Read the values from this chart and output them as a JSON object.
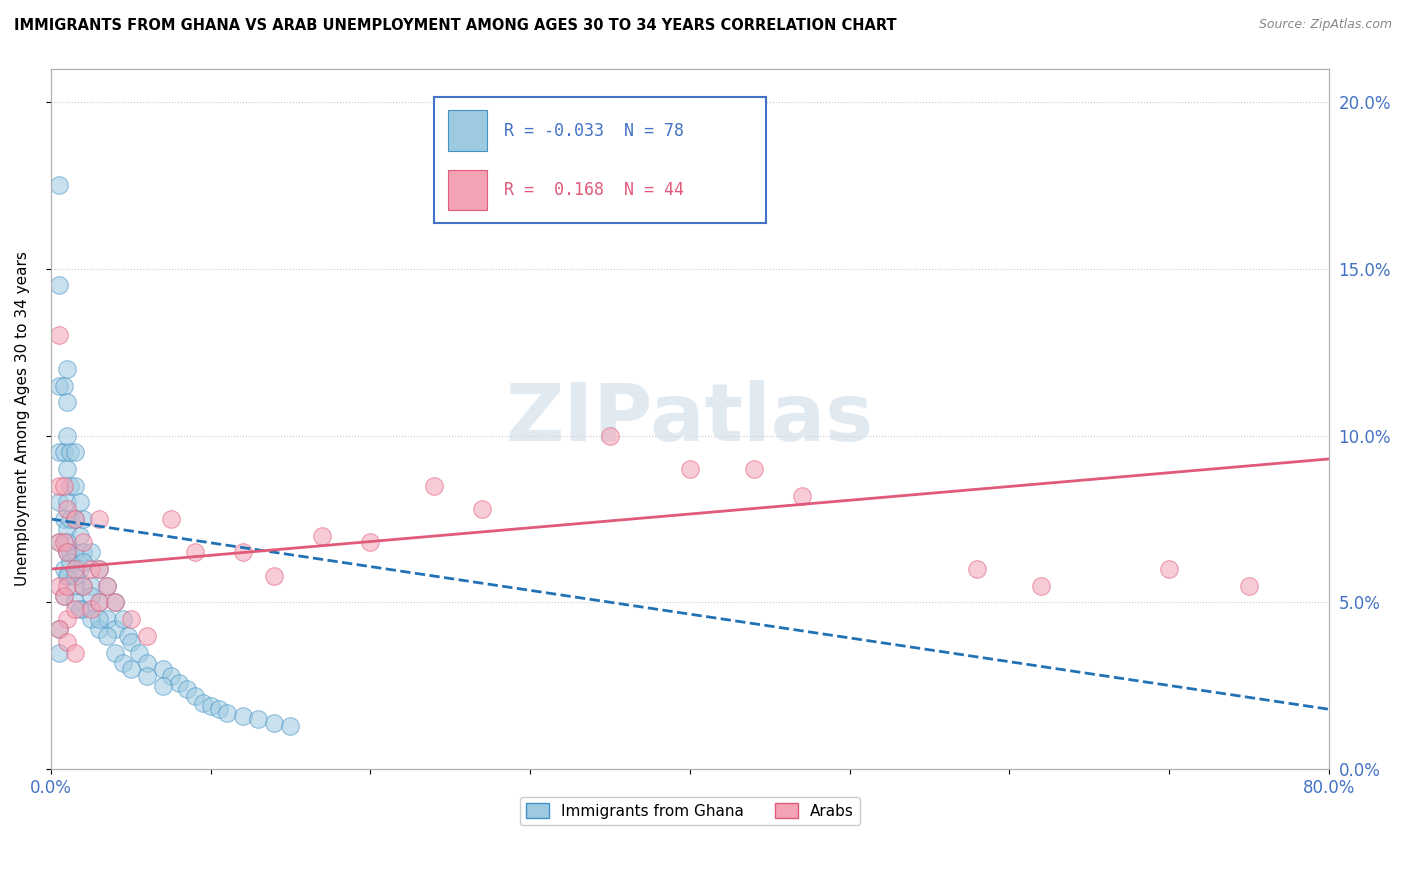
{
  "title": "IMMIGRANTS FROM GHANA VS ARAB UNEMPLOYMENT AMONG AGES 30 TO 34 YEARS CORRELATION CHART",
  "source": "Source: ZipAtlas.com",
  "ylabel": "Unemployment Among Ages 30 to 34 years",
  "xlim": [
    0.0,
    0.8
  ],
  "ylim": [
    0.0,
    0.21
  ],
  "xticks": [
    0.0,
    0.1,
    0.2,
    0.3,
    0.4,
    0.5,
    0.6,
    0.7,
    0.8
  ],
  "xticklabels": [
    "0.0%",
    "",
    "",
    "",
    "",
    "",
    "",
    "",
    "80.0%"
  ],
  "yticks": [
    0.0,
    0.05,
    0.1,
    0.15,
    0.2
  ],
  "yticklabels_right": [
    "0.0%",
    "5.0%",
    "10.0%",
    "15.0%",
    "20.0%"
  ],
  "R_ghana": -0.033,
  "N_ghana": 78,
  "R_arab": 0.168,
  "N_arab": 44,
  "ghana_color": "#9ecae1",
  "arab_color": "#f4a3b5",
  "ghana_edge_color": "#4292c6",
  "arab_edge_color": "#e05a7a",
  "ghana_line_color": "#2171b5",
  "arab_line_color": "#e05a7a",
  "watermark": "ZIPatlas",
  "watermark_color": "#d0dce8",
  "ghana_trend_x0": 0.0,
  "ghana_trend_y0": 0.075,
  "ghana_trend_x1": 0.8,
  "ghana_trend_y1": 0.018,
  "arab_trend_x0": 0.0,
  "arab_trend_y0": 0.06,
  "arab_trend_x1": 0.8,
  "arab_trend_y1": 0.093,
  "ghana_x": [
    0.005,
    0.005,
    0.005,
    0.005,
    0.005,
    0.005,
    0.008,
    0.008,
    0.008,
    0.008,
    0.01,
    0.01,
    0.01,
    0.01,
    0.01,
    0.01,
    0.01,
    0.01,
    0.012,
    0.012,
    0.012,
    0.012,
    0.015,
    0.015,
    0.015,
    0.015,
    0.015,
    0.018,
    0.018,
    0.018,
    0.02,
    0.02,
    0.02,
    0.02,
    0.025,
    0.025,
    0.025,
    0.03,
    0.03,
    0.03,
    0.035,
    0.035,
    0.04,
    0.04,
    0.045,
    0.048,
    0.05,
    0.055,
    0.06,
    0.07,
    0.075,
    0.08,
    0.085,
    0.09,
    0.095,
    0.1,
    0.105,
    0.11,
    0.12,
    0.13,
    0.14,
    0.15,
    0.005,
    0.005,
    0.008,
    0.01,
    0.01,
    0.012,
    0.015,
    0.015,
    0.018,
    0.02,
    0.025,
    0.03,
    0.035,
    0.04,
    0.045,
    0.05,
    0.06,
    0.07
  ],
  "ghana_y": [
    0.175,
    0.145,
    0.115,
    0.095,
    0.08,
    0.068,
    0.115,
    0.095,
    0.075,
    0.06,
    0.12,
    0.11,
    0.1,
    0.09,
    0.08,
    0.072,
    0.065,
    0.058,
    0.095,
    0.085,
    0.075,
    0.065,
    0.095,
    0.085,
    0.075,
    0.065,
    0.055,
    0.08,
    0.07,
    0.06,
    0.075,
    0.065,
    0.055,
    0.048,
    0.065,
    0.055,
    0.045,
    0.06,
    0.05,
    0.042,
    0.055,
    0.045,
    0.05,
    0.042,
    0.045,
    0.04,
    0.038,
    0.035,
    0.032,
    0.03,
    0.028,
    0.026,
    0.024,
    0.022,
    0.02,
    0.019,
    0.018,
    0.017,
    0.016,
    0.015,
    0.014,
    0.013,
    0.042,
    0.035,
    0.052,
    0.068,
    0.058,
    0.062,
    0.058,
    0.05,
    0.048,
    0.062,
    0.052,
    0.045,
    0.04,
    0.035,
    0.032,
    0.03,
    0.028,
    0.025
  ],
  "arab_x": [
    0.005,
    0.005,
    0.005,
    0.005,
    0.008,
    0.008,
    0.008,
    0.01,
    0.01,
    0.01,
    0.01,
    0.015,
    0.015,
    0.015,
    0.02,
    0.02,
    0.025,
    0.025,
    0.03,
    0.03,
    0.03,
    0.035,
    0.04,
    0.05,
    0.06,
    0.075,
    0.09,
    0.12,
    0.14,
    0.17,
    0.2,
    0.24,
    0.27,
    0.35,
    0.4,
    0.44,
    0.47,
    0.58,
    0.62,
    0.7,
    0.75,
    0.005,
    0.01,
    0.015
  ],
  "arab_y": [
    0.13,
    0.085,
    0.068,
    0.055,
    0.085,
    0.068,
    0.052,
    0.078,
    0.065,
    0.055,
    0.045,
    0.075,
    0.06,
    0.048,
    0.068,
    0.055,
    0.06,
    0.048,
    0.075,
    0.06,
    0.05,
    0.055,
    0.05,
    0.045,
    0.04,
    0.075,
    0.065,
    0.065,
    0.058,
    0.07,
    0.068,
    0.085,
    0.078,
    0.1,
    0.09,
    0.09,
    0.082,
    0.06,
    0.055,
    0.06,
    0.055,
    0.042,
    0.038,
    0.035
  ]
}
